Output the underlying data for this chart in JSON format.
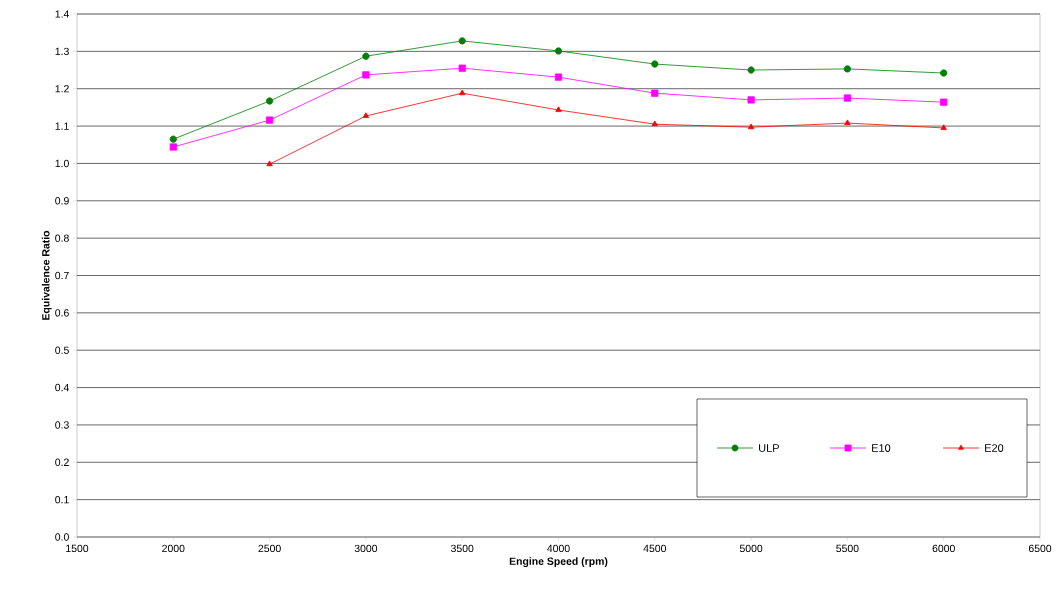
{
  "chart_data": {
    "type": "line",
    "xlabel": "Engine Speed (rpm)",
    "ylabel": "Equivalence Ratio",
    "x": [
      2000,
      2500,
      3000,
      3500,
      4000,
      4500,
      5000,
      5500,
      6000
    ],
    "series": [
      {
        "name": "ULP",
        "color": "#008000",
        "marker": "circle",
        "values": [
          1.065,
          1.167,
          1.287,
          1.328,
          1.301,
          1.266,
          1.25,
          1.253,
          1.242
        ]
      },
      {
        "name": "E10",
        "color": "#ff00ff",
        "marker": "square",
        "values": [
          1.044,
          1.116,
          1.237,
          1.255,
          1.231,
          1.188,
          1.17,
          1.175,
          1.164
        ]
      },
      {
        "name": "E20",
        "color": "#ff0000",
        "marker": "triangle",
        "values": [
          null,
          0.998,
          1.127,
          1.188,
          1.143,
          1.105,
          1.097,
          1.108,
          1.095
        ]
      }
    ],
    "xlim": [
      1500,
      6500
    ],
    "xticks": [
      1500,
      2000,
      2500,
      3000,
      3500,
      4000,
      4500,
      5000,
      5500,
      6000,
      6500
    ],
    "ylim": [
      0,
      1.4
    ],
    "yticks": [
      {
        "value": 0,
        "label": "0.0"
      },
      {
        "value": 0.1,
        "label": "0.1"
      },
      {
        "value": 0.2,
        "label": "0.2"
      },
      {
        "value": 0.3,
        "label": "0.3"
      },
      {
        "value": 0.4,
        "label": "0.4"
      },
      {
        "value": 0.5,
        "label": "0.5"
      },
      {
        "value": 0.6,
        "label": "0.6"
      },
      {
        "value": 0.7,
        "label": "0.7"
      },
      {
        "value": 0.8,
        "label": "0.8"
      },
      {
        "value": 0.9,
        "label": "0.9"
      },
      {
        "value": 1.0,
        "label": "1.0"
      },
      {
        "value": 1.1,
        "label": "1.1"
      },
      {
        "value": 1.2,
        "label": "1.2"
      },
      {
        "value": 1.3,
        "label": "1.3"
      },
      {
        "value": 1.4,
        "label": "1.4"
      }
    ],
    "grid": "y",
    "legend": "bottom right",
    "line_style": "solid"
  }
}
